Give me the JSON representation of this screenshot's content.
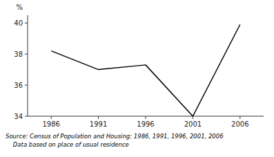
{
  "chart_data": {
    "type": "line",
    "x": [
      1986,
      1991,
      1996,
      2001,
      2006
    ],
    "values": [
      38.2,
      37.0,
      37.3,
      34.0,
      39.9
    ],
    "color": "#000000",
    "y_label": "%",
    "xlim": [
      1983.5,
      2008.5
    ],
    "ylim": [
      34,
      40.5
    ],
    "xticks": [
      1986,
      1991,
      1996,
      2001,
      2006
    ],
    "yticks": [
      34,
      36,
      38,
      40
    ],
    "grid": false,
    "annotations": [
      "Source: Census of Population and Housing: 1986, 1991, 1996, 2001, 2006",
      "    Data based on place of usual residence"
    ]
  }
}
